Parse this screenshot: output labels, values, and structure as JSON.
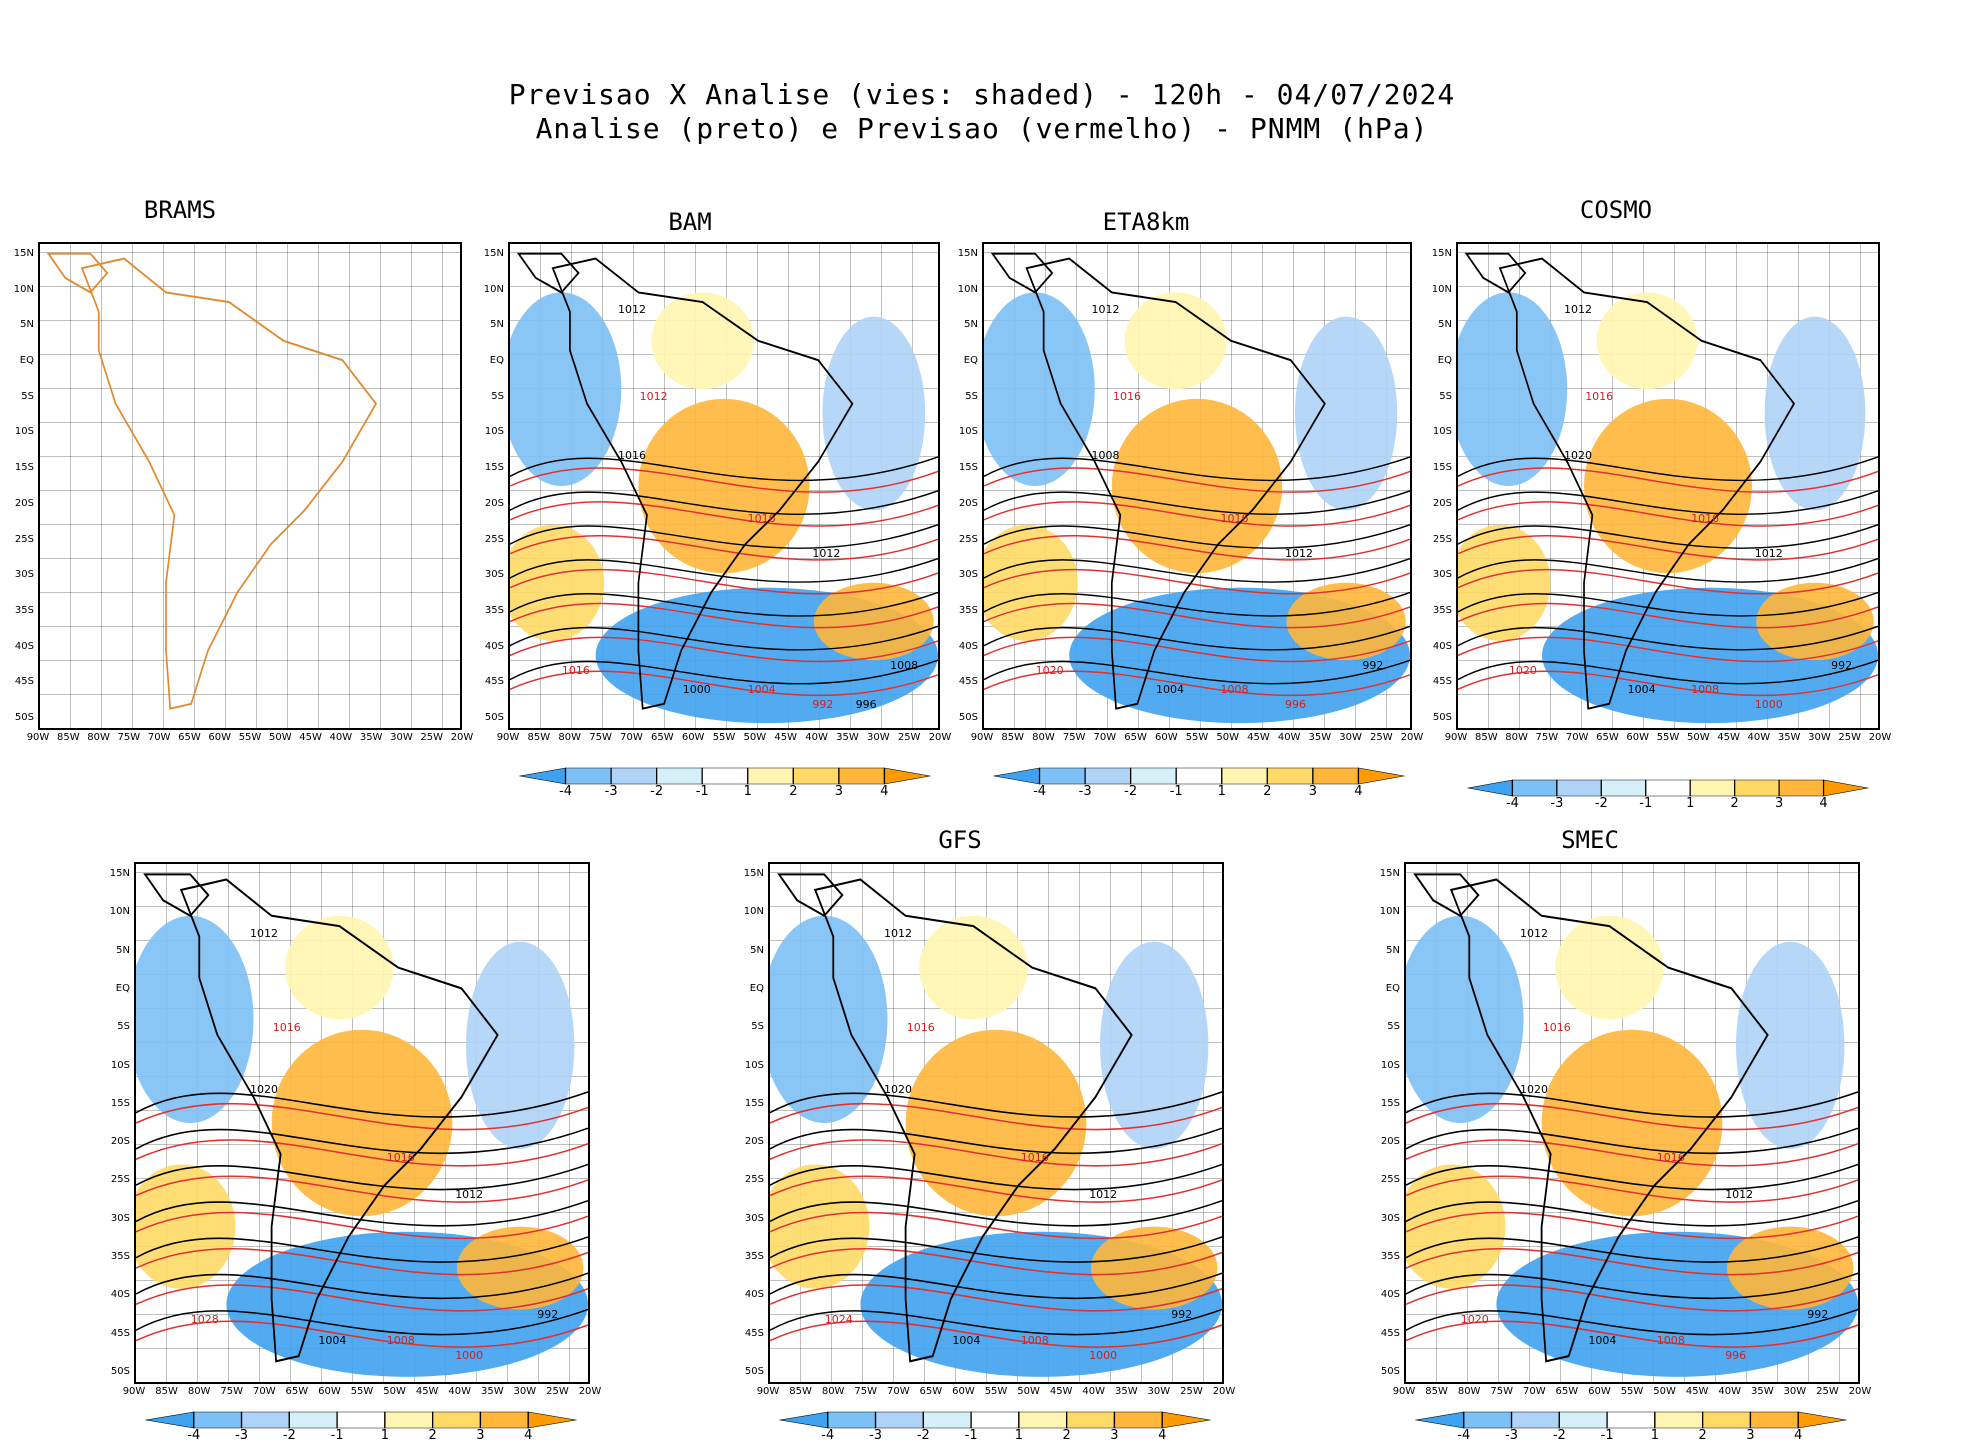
{
  "header": {
    "line1": "Previsao X Analise (vies: shaded) - 120h - 04/07/2024",
    "line2": "Analise (preto) e Previsao (vermelho) - PNMM (hPa)"
  },
  "lat_labels": [
    "15N",
    "10N",
    "5N",
    "EQ",
    "5S",
    "10S",
    "15S",
    "20S",
    "25S",
    "30S",
    "35S",
    "40S",
    "45S",
    "50S"
  ],
  "lon_labels": [
    "90W",
    "85W",
    "80W",
    "75W",
    "70W",
    "65W",
    "60W",
    "55W",
    "50W",
    "45W",
    "40W",
    "35W",
    "30W",
    "25W",
    "20W"
  ],
  "colorbar": {
    "labels": [
      "-4",
      "-3",
      "-2",
      "-1",
      "1",
      "2",
      "3",
      "4"
    ],
    "colors": [
      "#3fa2f0",
      "#7cc0f5",
      "#aed3f7",
      "#d6f0fa",
      "#ffffff",
      "#fff5b0",
      "#ffd966",
      "#ffb63b",
      "#ff9b00"
    ]
  },
  "panels": [
    {
      "name": "BRAMS",
      "isobars": []
    },
    {
      "name": "BAM",
      "isobars": [
        "1012",
        "1012",
        "1016",
        "1016",
        "1012",
        "1016",
        "1000",
        "1004",
        "1008",
        "992",
        "996"
      ]
    },
    {
      "name": "ETA8km",
      "isobars": [
        "1012",
        "1016",
        "1008",
        "1016",
        "1012",
        "1020",
        "1004",
        "1008",
        "992",
        "996"
      ]
    },
    {
      "name": "COSMO",
      "isobars": [
        "1012",
        "1016",
        "1020",
        "1016",
        "1012",
        "1020",
        "1004",
        "1008",
        "992",
        "1000"
      ]
    },
    {
      "name": "",
      "isobars": [
        "1012",
        "1016",
        "1020",
        "1016",
        "1012",
        "1028",
        "1004",
        "1008",
        "992",
        "1000"
      ]
    },
    {
      "name": "GFS",
      "isobars": [
        "1012",
        "1016",
        "1020",
        "1016",
        "1012",
        "1024",
        "1004",
        "1008",
        "992",
        "1000"
      ]
    },
    {
      "name": "SMEC",
      "isobars": [
        "1012",
        "1016",
        "1020",
        "1016",
        "1012",
        "1020",
        "1004",
        "1008",
        "992",
        "996"
      ]
    }
  ]
}
